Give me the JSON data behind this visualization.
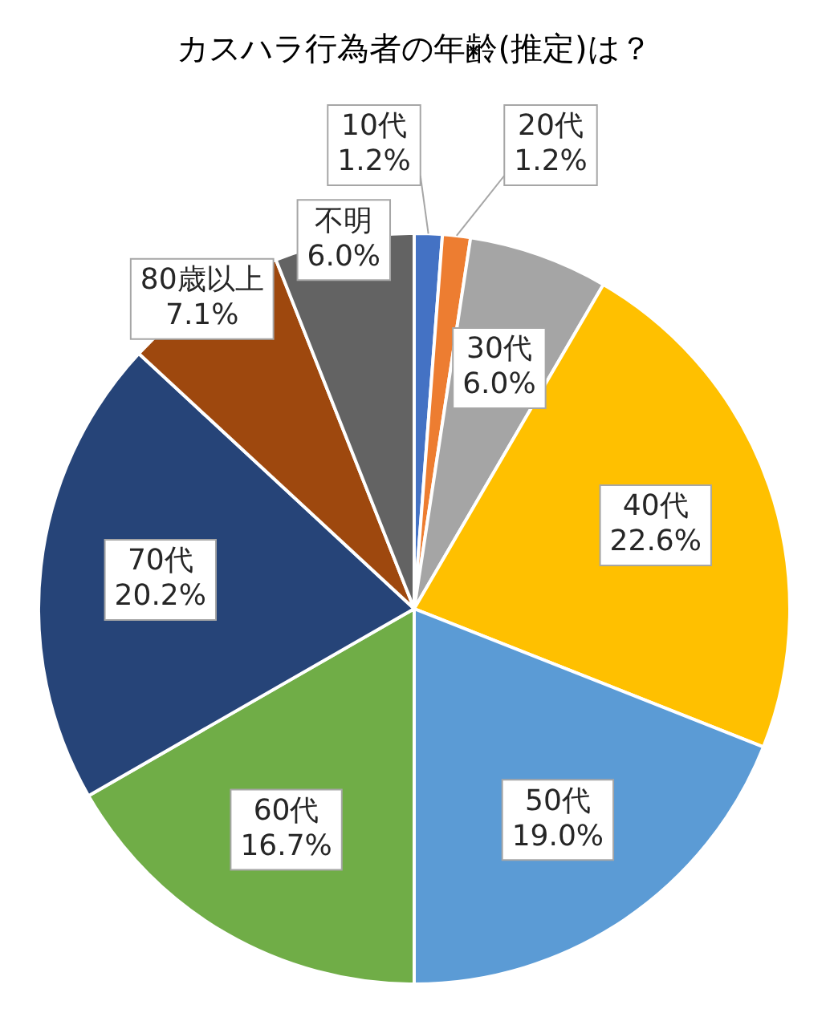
{
  "chart_data": {
    "type": "pie",
    "title": "カスハラ行為者の年齢(推定)は？",
    "categories": [
      "10代",
      "20代",
      "30代",
      "40代",
      "50代",
      "60代",
      "70代",
      "80歳以上",
      "不明"
    ],
    "values": [
      1.2,
      1.2,
      6.0,
      22.6,
      19.0,
      16.7,
      20.2,
      7.1,
      6.0
    ],
    "value_labels": [
      "1.2%",
      "1.2%",
      "6.0%",
      "22.6%",
      "19.0%",
      "16.7%",
      "20.2%",
      "7.1%",
      "6.0%"
    ],
    "colors": [
      "#4472c4",
      "#ed7d31",
      "#a5a5a5",
      "#ffc000",
      "#5b9bd5",
      "#70ad47",
      "#264478",
      "#9e480e",
      "#636363"
    ],
    "legend": false
  }
}
